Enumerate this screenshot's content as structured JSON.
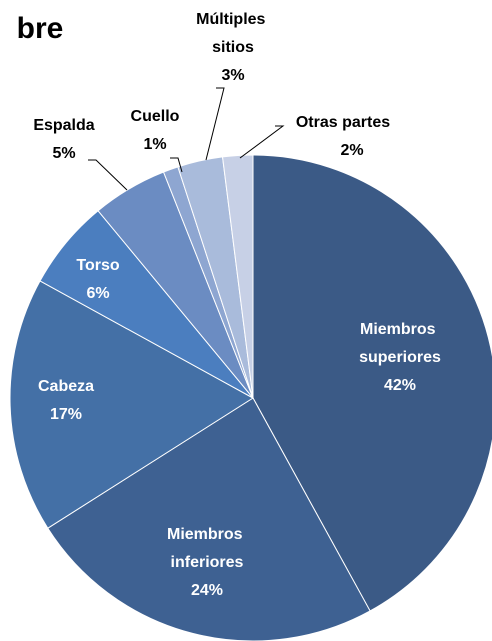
{
  "chart_data": {
    "type": "pie",
    "title": "bre",
    "categories": [
      "Miembros superiores",
      "Miembros inferiores",
      "Cabeza",
      "Torso",
      "Espalda",
      "Cuello",
      "Múltiples sitios",
      "Otras partes"
    ],
    "values": [
      42,
      24,
      17,
      6,
      5,
      1,
      3,
      2
    ],
    "value_labels": [
      "42%",
      "24%",
      "17%",
      "6%",
      "5%",
      "1%",
      "3%",
      "2%"
    ],
    "colors": [
      "#3b5a86",
      "#3e6192",
      "#4470a6",
      "#4b7ebf",
      "#6b8cc2",
      "#8ea6d1",
      "#a9bbdb",
      "#c7d0e6"
    ]
  }
}
